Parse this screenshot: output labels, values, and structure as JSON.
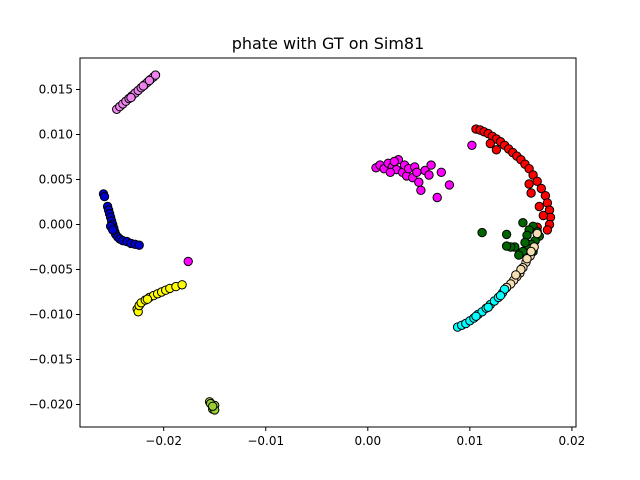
{
  "chart_data": {
    "type": "scatter",
    "title": "phate with GT on Sim81",
    "xlabel": "",
    "ylabel": "",
    "xlim": [
      -0.0282,
      0.0204
    ],
    "ylim": [
      -0.0225,
      0.0185
    ],
    "xticks": [
      -0.02,
      -0.01,
      0.0,
      0.01,
      0.02
    ],
    "xtick_labels": [
      "−0.02",
      "−0.01",
      "0.00",
      "0.01",
      "0.02"
    ],
    "yticks": [
      -0.02,
      -0.015,
      -0.01,
      -0.005,
      0.0,
      0.005,
      0.01,
      0.015
    ],
    "ytick_labels": [
      "−0.020",
      "−0.015",
      "−0.010",
      "−0.005",
      "0.000",
      "0.005",
      "0.010",
      "0.015"
    ],
    "grid": false,
    "legend": "none",
    "marker_edge_color": "#000000",
    "series": [
      {
        "color": "#ee82ee",
        "points": [
          [
            -0.0246,
            0.0128
          ],
          [
            -0.0243,
            0.0131
          ],
          [
            -0.024,
            0.0134
          ],
          [
            -0.0237,
            0.0137
          ],
          [
            -0.0234,
            0.014
          ],
          [
            -0.0231,
            0.0143
          ],
          [
            -0.0228,
            0.0146
          ],
          [
            -0.0225,
            0.0149
          ],
          [
            -0.0222,
            0.0152
          ],
          [
            -0.0219,
            0.0155
          ],
          [
            -0.0216,
            0.0158
          ],
          [
            -0.0213,
            0.0161
          ],
          [
            -0.021,
            0.0164
          ],
          [
            -0.0208,
            0.0166
          ],
          [
            -0.0232,
            0.0141
          ],
          [
            -0.022,
            0.0154
          ],
          [
            -0.0214,
            0.016
          ]
        ]
      },
      {
        "color": "#0000cd",
        "points": [
          [
            -0.0259,
            0.0034
          ],
          [
            -0.0258,
            0.0031
          ],
          [
            -0.0255,
            0.002
          ],
          [
            -0.0254,
            0.0016
          ],
          [
            -0.0253,
            0.0012
          ],
          [
            -0.0252,
            0.0008
          ],
          [
            -0.0251,
            0.0004
          ],
          [
            -0.025,
            0.0
          ],
          [
            -0.0249,
            -0.0004
          ],
          [
            -0.0248,
            -0.0008
          ],
          [
            -0.0247,
            -0.0011
          ],
          [
            -0.0245,
            -0.0014
          ],
          [
            -0.0243,
            -0.0016
          ],
          [
            -0.024,
            -0.0018
          ],
          [
            -0.0236,
            -0.0019
          ],
          [
            -0.0232,
            -0.0021
          ],
          [
            -0.0228,
            -0.0022
          ],
          [
            -0.0224,
            -0.0023
          ],
          [
            -0.0252,
            -0.0002
          ],
          [
            -0.025,
            -0.0006
          ]
        ]
      },
      {
        "color": "#ff00ff",
        "points": [
          [
            -0.0176,
            -0.0041
          ],
          [
            0.0008,
            0.0063
          ],
          [
            0.0012,
            0.0066
          ],
          [
            0.0016,
            0.0062
          ],
          [
            0.002,
            0.0068
          ],
          [
            0.0024,
            0.0064
          ],
          [
            0.0028,
            0.0061
          ],
          [
            0.003,
            0.0072
          ],
          [
            0.0034,
            0.0058
          ],
          [
            0.0036,
            0.0066
          ],
          [
            0.0038,
            0.0054
          ],
          [
            0.004,
            0.0062
          ],
          [
            0.0044,
            0.0052
          ],
          [
            0.0046,
            0.0064
          ],
          [
            0.0048,
            0.0058
          ],
          [
            0.005,
            0.0047
          ],
          [
            0.0052,
            0.0038
          ],
          [
            0.0056,
            0.006
          ],
          [
            0.006,
            0.0055
          ],
          [
            0.0062,
            0.0066
          ],
          [
            0.0068,
            0.003
          ],
          [
            0.0072,
            0.0058
          ],
          [
            0.008,
            0.0044
          ],
          [
            0.0102,
            0.0088
          ],
          [
            0.0022,
            0.0058
          ],
          [
            0.0026,
            0.007
          ]
        ]
      },
      {
        "color": "#ff0000",
        "points": [
          [
            0.0106,
            0.0106
          ],
          [
            0.011,
            0.0105
          ],
          [
            0.0114,
            0.0103
          ],
          [
            0.0118,
            0.0101
          ],
          [
            0.0122,
            0.0098
          ],
          [
            0.0126,
            0.0095
          ],
          [
            0.013,
            0.0092
          ],
          [
            0.0134,
            0.0088
          ],
          [
            0.0138,
            0.0084
          ],
          [
            0.0142,
            0.008
          ],
          [
            0.0146,
            0.0076
          ],
          [
            0.015,
            0.0072
          ],
          [
            0.0154,
            0.0067
          ],
          [
            0.0158,
            0.0062
          ],
          [
            0.0162,
            0.0055
          ],
          [
            0.0166,
            0.0048
          ],
          [
            0.017,
            0.004
          ],
          [
            0.0174,
            0.0032
          ],
          [
            0.0176,
            0.0024
          ],
          [
            0.0178,
            0.0016
          ],
          [
            0.0179,
            0.0008
          ],
          [
            0.0178,
            0.0
          ],
          [
            0.0176,
            -0.0006
          ],
          [
            0.012,
            0.009
          ],
          [
            0.0126,
            0.0083
          ],
          [
            0.016,
            0.0035
          ],
          [
            0.0168,
            0.002
          ],
          [
            0.0172,
            0.001
          ],
          [
            0.0166,
            -0.0003
          ],
          [
            0.0158,
            0.0045
          ]
        ]
      },
      {
        "color": "#006400",
        "points": [
          [
            0.0112,
            -0.0009
          ],
          [
            0.0136,
            -0.0011
          ],
          [
            0.0152,
            0.0002
          ],
          [
            0.0162,
            -0.0002
          ],
          [
            0.0166,
            -0.0008
          ],
          [
            0.0168,
            -0.0013
          ],
          [
            0.0164,
            -0.0018
          ],
          [
            0.016,
            -0.0022
          ],
          [
            0.0156,
            -0.0026
          ],
          [
            0.0152,
            -0.003
          ],
          [
            0.0148,
            -0.0034
          ],
          [
            0.0144,
            -0.0025
          ],
          [
            0.014,
            -0.0025
          ],
          [
            0.0136,
            -0.0024
          ],
          [
            0.0158,
            -0.0006
          ],
          [
            0.0162,
            -0.003
          ],
          [
            0.0156,
            -0.0012
          ],
          [
            0.0154,
            -0.002
          ]
        ]
      },
      {
        "color": "#f5deb3",
        "points": [
          [
            0.0166,
            -0.001
          ],
          [
            0.0163,
            -0.0025
          ],
          [
            0.0159,
            -0.0035
          ],
          [
            0.0155,
            -0.0042
          ],
          [
            0.0152,
            -0.0048
          ],
          [
            0.0149,
            -0.0054
          ],
          [
            0.0146,
            -0.0058
          ],
          [
            0.0143,
            -0.0062
          ],
          [
            0.014,
            -0.0066
          ],
          [
            0.0136,
            -0.007
          ],
          [
            0.0156,
            -0.0038
          ],
          [
            0.015,
            -0.005
          ],
          [
            0.0145,
            -0.0056
          ],
          [
            0.016,
            -0.003
          ]
        ]
      },
      {
        "color": "#00ffff",
        "points": [
          [
            0.0088,
            -0.0114
          ],
          [
            0.0092,
            -0.0112
          ],
          [
            0.0096,
            -0.011
          ],
          [
            0.01,
            -0.0107
          ],
          [
            0.0104,
            -0.0104
          ],
          [
            0.0108,
            -0.01
          ],
          [
            0.0112,
            -0.0097
          ],
          [
            0.0116,
            -0.0093
          ],
          [
            0.012,
            -0.0089
          ],
          [
            0.0124,
            -0.0085
          ],
          [
            0.0128,
            -0.0081
          ],
          [
            0.0132,
            -0.0076
          ],
          [
            0.0134,
            -0.0072
          ],
          [
            0.0106,
            -0.0102
          ],
          [
            0.0118,
            -0.0092
          ],
          [
            0.013,
            -0.0079
          ]
        ]
      },
      {
        "color": "#ffff00",
        "points": [
          [
            -0.0226,
            -0.0094
          ],
          [
            -0.0225,
            -0.0097
          ],
          [
            -0.0224,
            -0.009
          ],
          [
            -0.0222,
            -0.0087
          ],
          [
            -0.0218,
            -0.0084
          ],
          [
            -0.0214,
            -0.0081
          ],
          [
            -0.021,
            -0.0079
          ],
          [
            -0.0206,
            -0.0077
          ],
          [
            -0.0202,
            -0.0075
          ],
          [
            -0.0198,
            -0.0073
          ],
          [
            -0.0194,
            -0.0071
          ],
          [
            -0.0188,
            -0.0069
          ],
          [
            -0.0182,
            -0.0067
          ],
          [
            -0.0216,
            -0.0083
          ]
        ]
      },
      {
        "color": "#9acd32",
        "points": [
          [
            -0.0155,
            -0.0197
          ],
          [
            -0.0153,
            -0.02
          ],
          [
            -0.0151,
            -0.0203
          ],
          [
            -0.015,
            -0.0201
          ],
          [
            -0.0152,
            -0.0205
          ],
          [
            -0.0154,
            -0.0199
          ],
          [
            -0.015,
            -0.0206
          ],
          [
            -0.0152,
            -0.0202
          ]
        ]
      }
    ]
  }
}
